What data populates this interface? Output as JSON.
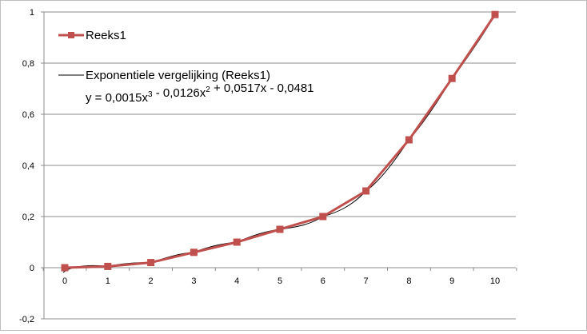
{
  "chart_data": {
    "type": "line",
    "title": "",
    "xlabel": "",
    "ylabel": "",
    "xlim": [
      0,
      10
    ],
    "ylim": [
      -0.2,
      1
    ],
    "xticks": [
      0,
      1,
      2,
      3,
      4,
      5,
      6,
      7,
      8,
      9,
      10
    ],
    "yticks": [
      -0.2,
      0,
      0.2,
      0.4,
      0.6,
      0.8,
      1
    ],
    "ytick_labels": [
      "-0,2",
      "0",
      "0,2",
      "0,4",
      "0,6",
      "0,8",
      "1"
    ],
    "xtick_labels": [
      "0",
      "1",
      "2",
      "3",
      "4",
      "5",
      "6",
      "7",
      "8",
      "9",
      "10"
    ],
    "grid": "horizontal",
    "series": [
      {
        "name": "Reeks1",
        "color": "#c0504d",
        "marker": "square",
        "x": [
          0,
          1,
          2,
          3,
          4,
          5,
          6,
          7,
          8,
          9,
          10
        ],
        "values": [
          0,
          0.005,
          0.02,
          0.06,
          0.1,
          0.15,
          0.2,
          0.3,
          0.5,
          0.74,
          0.99
        ]
      }
    ],
    "trendline": {
      "name": "Exponentiele vergelijking (Reeks1)",
      "color": "#000000",
      "equation": "y = 0,0015x³ - 0,0126x² + 0,0517x - 0,0481",
      "coefficients": [
        0.0015,
        -0.0126,
        0.0517,
        -0.0481
      ]
    },
    "legend": "top-left"
  }
}
